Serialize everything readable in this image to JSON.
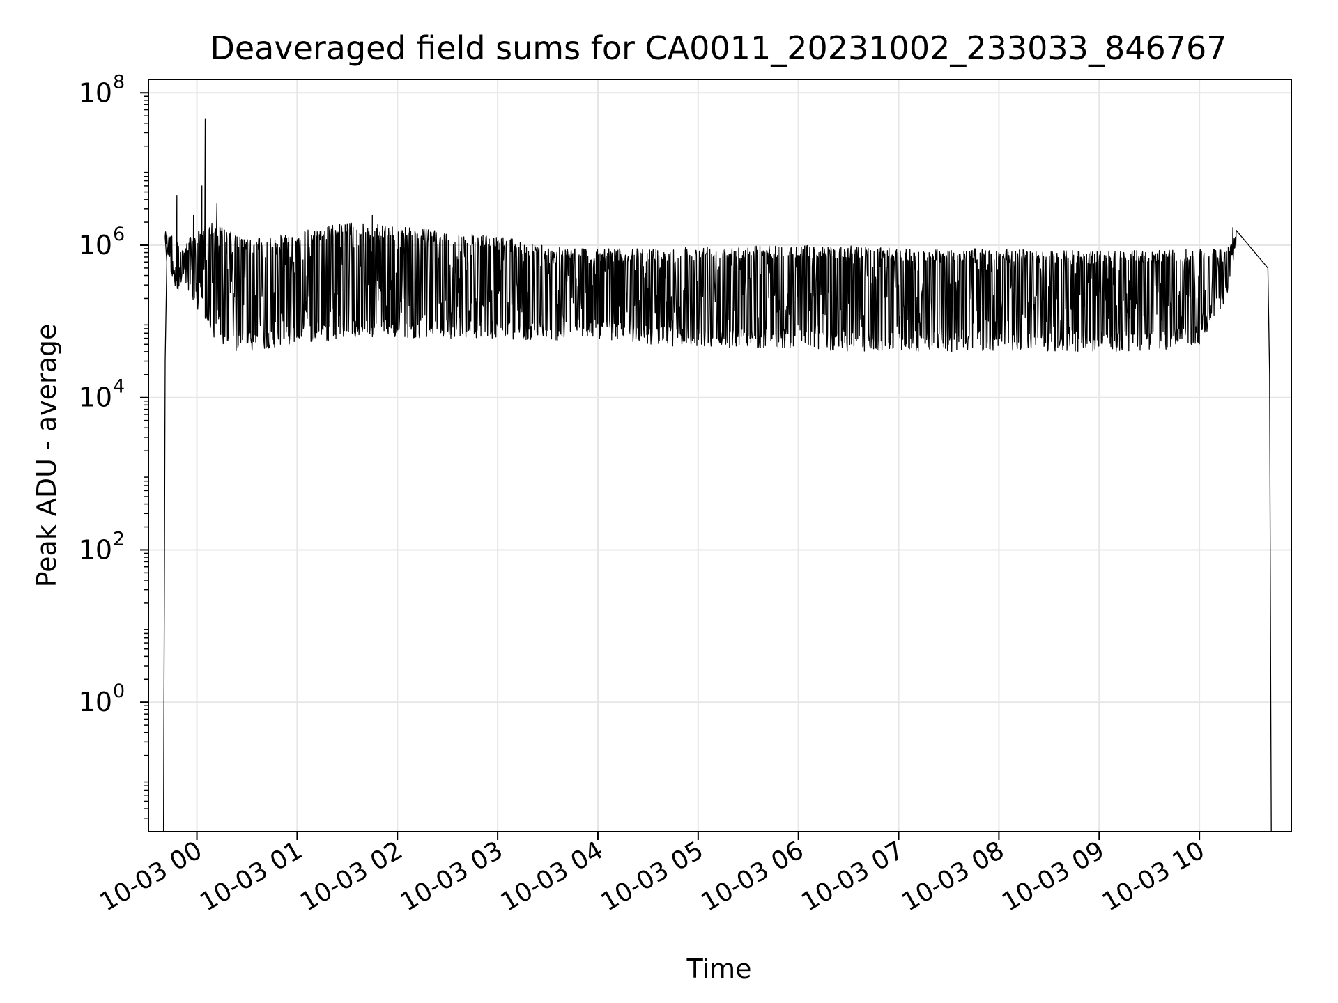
{
  "chart_data": {
    "type": "line",
    "title": "Deaveraged field sums for CA0011_20231002_233033_846767",
    "xlabel": "Time",
    "ylabel": "Peak ADU - average",
    "yscale": "log",
    "ylim": [
      0.02,
      150000000
    ],
    "xlim": [
      "2023-10-02 23:31",
      "2023-10-03 10:55"
    ],
    "grid": true,
    "line_color": "#000000",
    "grid_color": "#e6e6e6",
    "x_ticks": [
      {
        "label": "10-03 00",
        "value": "2023-10-03 00:00"
      },
      {
        "label": "10-03 01",
        "value": "2023-10-03 01:00"
      },
      {
        "label": "10-03 02",
        "value": "2023-10-03 02:00"
      },
      {
        "label": "10-03 03",
        "value": "2023-10-03 03:00"
      },
      {
        "label": "10-03 04",
        "value": "2023-10-03 04:00"
      },
      {
        "label": "10-03 05",
        "value": "2023-10-03 05:00"
      },
      {
        "label": "10-03 06",
        "value": "2023-10-03 06:00"
      },
      {
        "label": "10-03 07",
        "value": "2023-10-03 07:00"
      },
      {
        "label": "10-03 08",
        "value": "2023-10-03 08:00"
      },
      {
        "label": "10-03 09",
        "value": "2023-10-03 09:00"
      },
      {
        "label": "10-03 10",
        "value": "2023-10-03 10:00"
      }
    ],
    "y_ticks": [
      {
        "base": "10",
        "exp": "8",
        "value": 100000000
      },
      {
        "base": "10",
        "exp": "6",
        "value": 1000000
      },
      {
        "base": "10",
        "exp": "4",
        "value": 10000
      },
      {
        "base": "10",
        "exp": "2",
        "value": 100
      },
      {
        "base": "10",
        "exp": "0",
        "value": 1
      }
    ],
    "series": [
      {
        "envelope": {
          "x": [
            "2023-10-02 23:41",
            "2023-10-02 23:45",
            "2023-10-02 23:50",
            "2023-10-02 23:55",
            "2023-10-03 00:00",
            "2023-10-03 00:05",
            "2023-10-03 00:10",
            "2023-10-03 00:20",
            "2023-10-03 00:30",
            "2023-10-03 00:45",
            "2023-10-03 01:00",
            "2023-10-03 01:30",
            "2023-10-03 02:00",
            "2023-10-03 02:30",
            "2023-10-03 03:00",
            "2023-10-03 03:30",
            "2023-10-03 04:00",
            "2023-10-03 04:30",
            "2023-10-03 05:00",
            "2023-10-03 05:30",
            "2023-10-03 06:00",
            "2023-10-03 06:30",
            "2023-10-03 07:00",
            "2023-10-03 07:30",
            "2023-10-03 08:00",
            "2023-10-03 08:30",
            "2023-10-03 09:00",
            "2023-10-03 09:30",
            "2023-10-03 10:00",
            "2023-10-03 10:15",
            "2023-10-03 10:22"
          ],
          "high": [
            1500000,
            1500000,
            1000000,
            1200000,
            1500000,
            2000000,
            2000000,
            1500000,
            1200000,
            1300000,
            1500000,
            2000000,
            1800000,
            1500000,
            1300000,
            1000000,
            900000,
            900000,
            1000000,
            1000000,
            1000000,
            1000000,
            900000,
            900000,
            900000,
            850000,
            850000,
            850000,
            900000,
            900000,
            1400000
          ],
          "low": [
            1200000,
            300000,
            250000,
            200000,
            150000,
            100000,
            60000,
            40000,
            40000,
            45000,
            50000,
            60000,
            60000,
            60000,
            60000,
            55000,
            60000,
            50000,
            45000,
            45000,
            45000,
            40000,
            40000,
            40000,
            40000,
            40000,
            40000,
            40000,
            50000,
            150000,
            900000
          ]
        },
        "spikes": [
          {
            "x": "2023-10-02 23:48",
            "y": 4500000
          },
          {
            "x": "2023-10-02 23:58",
            "y": 2500000
          },
          {
            "x": "2023-10-03 00:03",
            "y": 6000000
          },
          {
            "x": "2023-10-03 00:05",
            "y": 45000000
          },
          {
            "x": "2023-10-03 00:12",
            "y": 3500000
          },
          {
            "x": "2023-10-03 01:45",
            "y": 2500000
          },
          {
            "x": "2023-10-03 10:20",
            "y": 1700000
          }
        ],
        "edges": {
          "start": "2023-10-02 23:40",
          "end": "2023-10-03 10:43"
        }
      }
    ]
  }
}
